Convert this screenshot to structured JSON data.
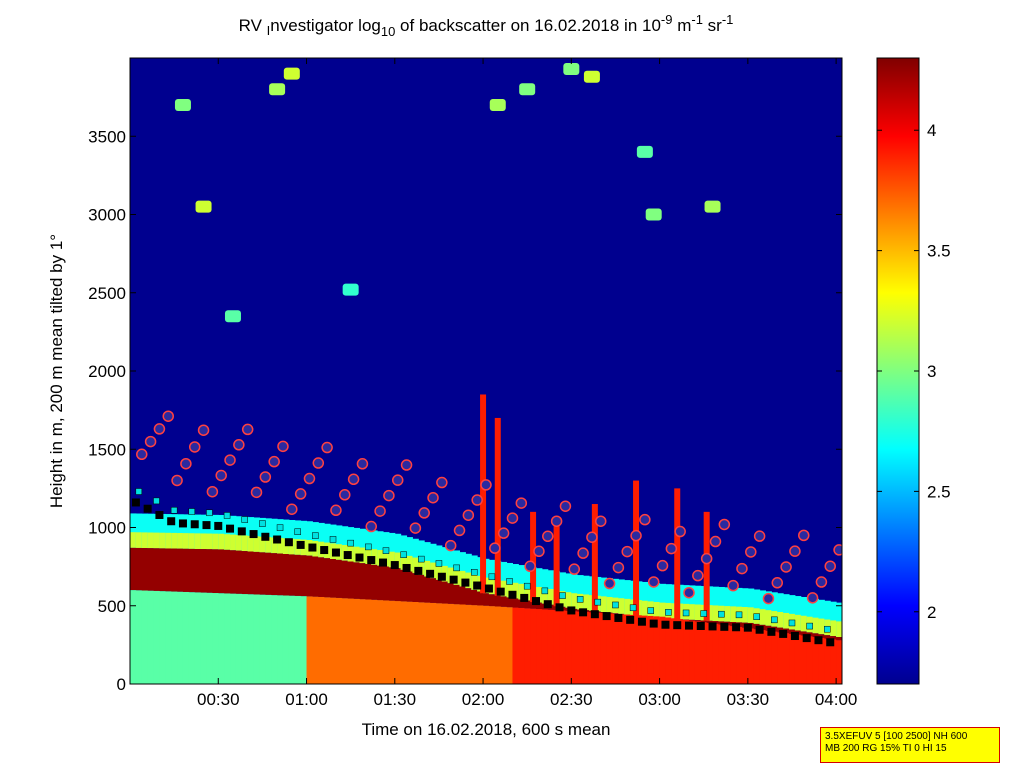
{
  "chart_data": {
    "type": "heatmap",
    "title": {
      "pre": "RV ",
      "sub_i": "I",
      "mid1": "nvestigator log",
      "sub10": "10",
      "mid2": " of backscatter on 16.02.2018 in 10",
      "sup1": "-9",
      "mid3": " m",
      "sup2": "-1",
      "mid4": " sr",
      "sup3": "-1"
    },
    "xlabel": "Time on 16.02.2018, 600 s mean",
    "ylabel": "Height in m, 200 m mean tilted by 1°",
    "x_ticks": [
      "00:30",
      "01:00",
      "01:30",
      "02:00",
      "02:30",
      "03:00",
      "03:30",
      "04:00"
    ],
    "x_tick_minutes": [
      30,
      60,
      90,
      120,
      150,
      180,
      210,
      240
    ],
    "xlim_minutes": [
      0,
      242
    ],
    "y_ticks": [
      0,
      500,
      1000,
      1500,
      2000,
      2500,
      3000,
      3500
    ],
    "ylim": [
      0,
      4000
    ],
    "colorbar": {
      "ticks": [
        2,
        2.5,
        3,
        3.5,
        4
      ],
      "tick_labels": [
        "2",
        "2.5",
        "3",
        "3.5",
        "4"
      ],
      "range": [
        1.7,
        4.3
      ],
      "colormap": "jet"
    },
    "layers": {
      "aerosol_top_m": [
        [
          0,
          870
        ],
        [
          30,
          860
        ],
        [
          60,
          820
        ],
        [
          90,
          740
        ],
        [
          120,
          580
        ],
        [
          150,
          480
        ],
        [
          180,
          420
        ],
        [
          210,
          390
        ],
        [
          240,
          300
        ],
        [
          242,
          280
        ]
      ],
      "bright_core_top_m": [
        [
          0,
          600
        ],
        [
          60,
          560
        ],
        [
          120,
          500
        ],
        [
          180,
          430
        ],
        [
          240,
          280
        ]
      ],
      "black_marker_layer_m": [
        [
          0,
          1180
        ],
        [
          15,
          1030
        ],
        [
          30,
          1010
        ],
        [
          60,
          880
        ],
        [
          90,
          760
        ],
        [
          120,
          620
        ],
        [
          150,
          470
        ],
        [
          180,
          380
        ],
        [
          210,
          360
        ],
        [
          240,
          260
        ]
      ]
    },
    "cloud_patches": [
      {
        "t": 18,
        "h": 3700,
        "v": 3.0
      },
      {
        "t": 25,
        "h": 3050,
        "v": 3.2
      },
      {
        "t": 35,
        "h": 2350,
        "v": 2.9
      },
      {
        "t": 50,
        "h": 3800,
        "v": 3.1
      },
      {
        "t": 55,
        "h": 3900,
        "v": 3.2
      },
      {
        "t": 75,
        "h": 2520,
        "v": 2.8
      },
      {
        "t": 125,
        "h": 3700,
        "v": 3.1
      },
      {
        "t": 135,
        "h": 3800,
        "v": 3.0
      },
      {
        "t": 150,
        "h": 3930,
        "v": 3.0
      },
      {
        "t": 157,
        "h": 3880,
        "v": 3.2
      },
      {
        "t": 175,
        "h": 3400,
        "v": 2.9
      },
      {
        "t": 178,
        "h": 3000,
        "v": 3.0
      },
      {
        "t": 198,
        "h": 3050,
        "v": 3.1
      }
    ]
  },
  "info_box": {
    "line1": "3.5XEFUV 5 [100 2500] NH 600",
    "line2": "MB 200 RG 15% TI 0 HI 15"
  },
  "colors": {
    "background_min": "#00008f",
    "max": "#800000",
    "info_box_bg": "#ffff00",
    "info_box_border": "#d40000",
    "marker_fill": "#2a2aa0",
    "marker_ring_top": "#ffffff",
    "square_marker": "#00e0e0"
  }
}
